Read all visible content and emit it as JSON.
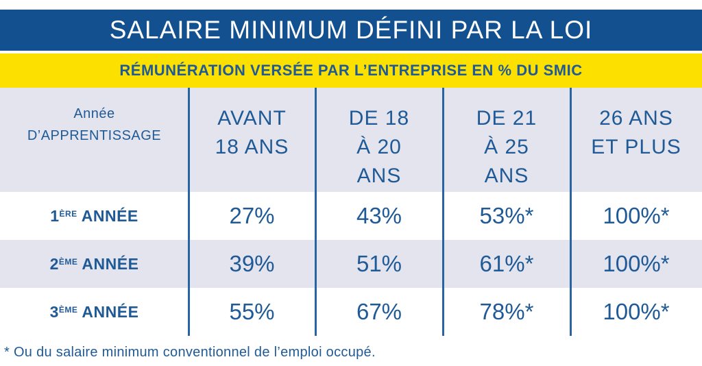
{
  "title": "SALAIRE MINIMUM DÉFINI PAR LA LOI",
  "subtitle": "RÉMUNÉRATION VERSÉE PAR L’ENTREPRISE EN % DU SMIC",
  "table": {
    "corner_label": "Année\nD’APPRENTISSAGE",
    "columns": [
      "AVANT\n18 ANS",
      "DE 18\nÀ 20\nANS",
      "DE 21\nÀ 25\nANS",
      "26 ANS\nET PLUS"
    ],
    "rows": [
      {
        "label_num": "1",
        "label_sup": "ÈRE",
        "label_rest": " ANNÉE",
        "values": [
          "27%",
          "43%",
          "53%*",
          "100%*"
        ]
      },
      {
        "label_num": "2",
        "label_sup": "ÈME",
        "label_rest": " ANNÉE",
        "values": [
          "39%",
          "51%",
          "61%*",
          "100%*"
        ]
      },
      {
        "label_num": "3",
        "label_sup": "ÈME",
        "label_rest": " ANNÉE",
        "values": [
          "55%",
          "67%",
          "78%*",
          "100%*"
        ]
      }
    ]
  },
  "footnote": "* Ou du salaire minimum conventionnel de l’emploi occupé.",
  "colors": {
    "title_bg": "#12508f",
    "subtitle_bg": "#fbe000",
    "text": "#1f5a96",
    "band": "#e4e4ee"
  }
}
